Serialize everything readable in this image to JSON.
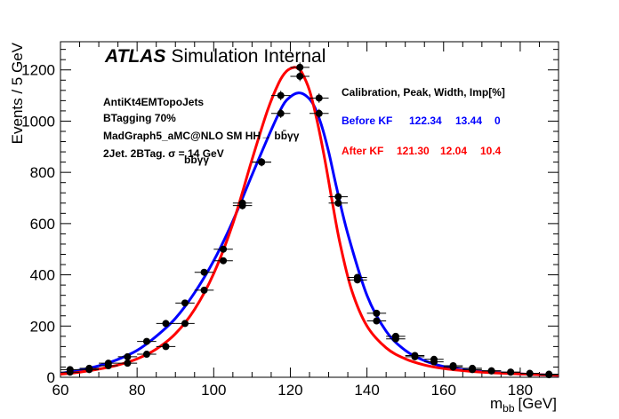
{
  "chart_data": {
    "type": "scatter",
    "xlabel": "m",
    "xlabel_sub": "bb",
    "xlabel_unit": "[GeV]",
    "ylabel": "Events / 5 GeV",
    "xlim": [
      60,
      190
    ],
    "ylim": [
      0,
      1310
    ],
    "x_ticks": [
      "60",
      "80",
      "100",
      "120",
      "140",
      "160",
      "180"
    ],
    "x_tick_values": [
      60,
      80,
      100,
      120,
      140,
      160,
      180
    ],
    "y_ticks": [
      "0",
      "200",
      "400",
      "600",
      "800",
      "1000",
      "1200"
    ],
    "y_tick_values": [
      0,
      200,
      400,
      600,
      800,
      1000,
      1200
    ],
    "grid": false,
    "atlas_label": "ATLAS",
    "atlas_sub": "Simulation Internal",
    "info_lines": [
      "AntiKt4EMTopoJets",
      "BTagging 70%",
      "MadGraph5_aMC@NLO SM HH→ bb̄γγ",
      "2Jet. 2BTag. σ = 14 GeV"
    ],
    "info_sigma_sub": "bb̄γγ",
    "legend_header": "Calibration, Peak,  Width,  Imp[%]",
    "series": [
      {
        "name": "Before KF",
        "peak": "122.34",
        "width": "13.44",
        "imp": "0",
        "color": "#0000ff",
        "x": [
          62.5,
          67.5,
          72.5,
          77.5,
          82.5,
          87.5,
          92.5,
          97.5,
          102.5,
          107.5,
          112.5,
          117.5,
          122.5,
          127.5,
          132.5,
          137.5,
          142.5,
          147.5,
          152.5,
          157.5,
          162.5,
          167.5,
          172.5,
          177.5,
          182.5,
          187.5
        ],
        "y": [
          30,
          35,
          55,
          80,
          140,
          210,
          290,
          410,
          500,
          680,
          840,
          1030,
          1175,
          1030,
          705,
          390,
          250,
          150,
          80,
          60,
          45,
          35,
          25,
          20,
          15,
          10
        ],
        "curve_x": [
          60,
          65,
          70,
          75,
          80,
          85,
          90,
          95,
          100,
          105,
          110,
          115,
          118,
          120,
          122,
          124,
          126,
          128,
          130,
          132,
          135,
          140,
          145,
          150,
          155,
          160,
          165,
          170,
          175,
          180,
          185,
          190
        ],
        "curve_y": [
          15,
          28,
          45,
          70,
          105,
          160,
          230,
          330,
          455,
          610,
          790,
          965,
          1060,
          1095,
          1110,
          1100,
          1065,
          990,
          880,
          745,
          560,
          320,
          180,
          105,
          65,
          42,
          30,
          22,
          17,
          13,
          10,
          8
        ]
      },
      {
        "name": "After KF",
        "peak": "121.30",
        "width": "12.04",
        "imp": "10.4",
        "color": "#ff0000",
        "x": [
          62.5,
          67.5,
          72.5,
          77.5,
          82.5,
          87.5,
          92.5,
          97.5,
          102.5,
          107.5,
          112.5,
          117.5,
          122.5,
          127.5,
          132.5,
          137.5,
          142.5,
          147.5,
          152.5,
          157.5,
          162.5,
          167.5,
          172.5,
          177.5,
          182.5,
          187.5
        ],
        "y": [
          20,
          30,
          45,
          55,
          90,
          120,
          210,
          340,
          455,
          670,
          840,
          1100,
          1210,
          1090,
          680,
          380,
          220,
          160,
          85,
          70,
          40,
          30,
          25,
          20,
          15,
          12
        ],
        "curve_x": [
          60,
          65,
          70,
          75,
          80,
          85,
          90,
          95,
          100,
          105,
          110,
          114,
          117,
          119,
          121,
          122,
          123,
          125,
          127,
          129,
          131,
          133,
          136,
          140,
          145,
          150,
          155,
          160,
          165,
          170,
          175,
          180,
          185,
          190
        ],
        "curve_y": [
          12,
          20,
          32,
          48,
          72,
          110,
          170,
          265,
          405,
          600,
          850,
          1040,
          1150,
          1195,
          1210,
          1205,
          1190,
          1120,
          1000,
          850,
          680,
          520,
          340,
          200,
          115,
          72,
          48,
          34,
          26,
          20,
          16,
          13,
          10,
          8
        ]
      }
    ]
  }
}
